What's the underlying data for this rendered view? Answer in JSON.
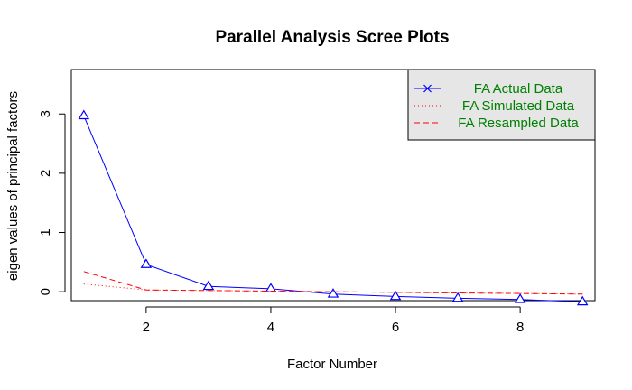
{
  "chart_data": {
    "type": "line",
    "title": "Parallel Analysis Scree Plots",
    "xlabel": "Factor Number",
    "ylabel": "eigen values of principal factors",
    "x": [
      1,
      2,
      3,
      4,
      5,
      6,
      7,
      8,
      9
    ],
    "xlim": [
      0.8,
      9.2
    ],
    "ylim": [
      -0.15,
      3.75
    ],
    "x_ticks": [
      2,
      4,
      6,
      8
    ],
    "y_ticks": [
      0,
      1,
      2,
      3
    ],
    "grid": false,
    "legend_position": "top-right",
    "series": [
      {
        "name": "FA  Actual Data",
        "color": "#0000ff",
        "line_style": "solid",
        "marker": "triangle",
        "values": [
          2.97,
          0.46,
          0.09,
          0.05,
          -0.04,
          -0.08,
          -0.11,
          -0.13,
          -0.17
        ]
      },
      {
        "name": "FA  Simulated Data",
        "color": "#ff0000",
        "line_style": "dotted",
        "marker": "none",
        "values": [
          0.13,
          0.03,
          0.02,
          0.01,
          0.0,
          -0.01,
          -0.02,
          -0.03,
          -0.04
        ]
      },
      {
        "name": "FA  Resampled Data",
        "color": "#ff0000",
        "line_style": "dashed",
        "marker": "none",
        "values": [
          0.34,
          0.03,
          0.02,
          0.01,
          0.0,
          -0.01,
          -0.02,
          -0.03,
          -0.04
        ]
      }
    ],
    "legend_text_color": "#008000",
    "legend_background": "#e6e6e6"
  }
}
